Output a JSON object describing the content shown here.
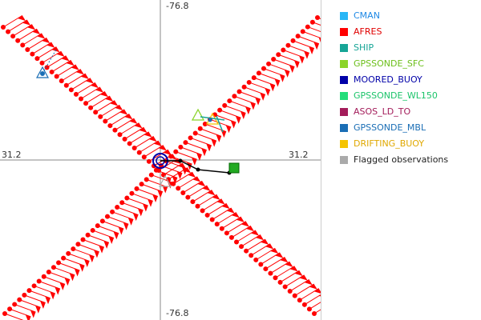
{
  "plot": {
    "axis_top_label": "-76.8",
    "axis_bottom_label": "-76.8",
    "axis_left_label": "31.2",
    "axis_right_label": "31.2"
  },
  "legend": {
    "items": [
      {
        "label": "CMAN",
        "color": "#29b6f6",
        "text_color": "#1e88e5"
      },
      {
        "label": "AFRES",
        "color": "#ff0000",
        "text_color": "#e00000"
      },
      {
        "label": "SHIP",
        "color": "#16a596",
        "text_color": "#16a596"
      },
      {
        "label": "GPSSONDE_SFC",
        "color": "#8bd42a",
        "text_color": "#6cbf1a"
      },
      {
        "label": "MOORED_BUOY",
        "color": "#0000a8",
        "text_color": "#0000a8"
      },
      {
        "label": "GPSSONDE_WL150",
        "color": "#22dd7a",
        "text_color": "#1bc46a"
      },
      {
        "label": "ASOS_LD_TO",
        "color": "#a31c5a",
        "text_color": "#a31c5a"
      },
      {
        "label": "GPSSONDE_MBL",
        "color": "#1a6eb5",
        "text_color": "#1a6eb5"
      },
      {
        "label": "DRIFTING_BUOY",
        "color": "#f5c400",
        "text_color": "#e0a800"
      },
      {
        "label": "Flagged observations",
        "color": "#aaaaaa",
        "text_color": "#222222"
      }
    ]
  },
  "colors": {
    "afres": "#ff0000",
    "moored_buoy": "#0000a8",
    "ship": "#16a596",
    "gpssonde_sfc": "#8bd42a",
    "gpssonde_mbl": "#1a6eb5",
    "drifting_buoy": "#f5c400",
    "track": "#000000",
    "flagged": "#aaaaaa"
  }
}
